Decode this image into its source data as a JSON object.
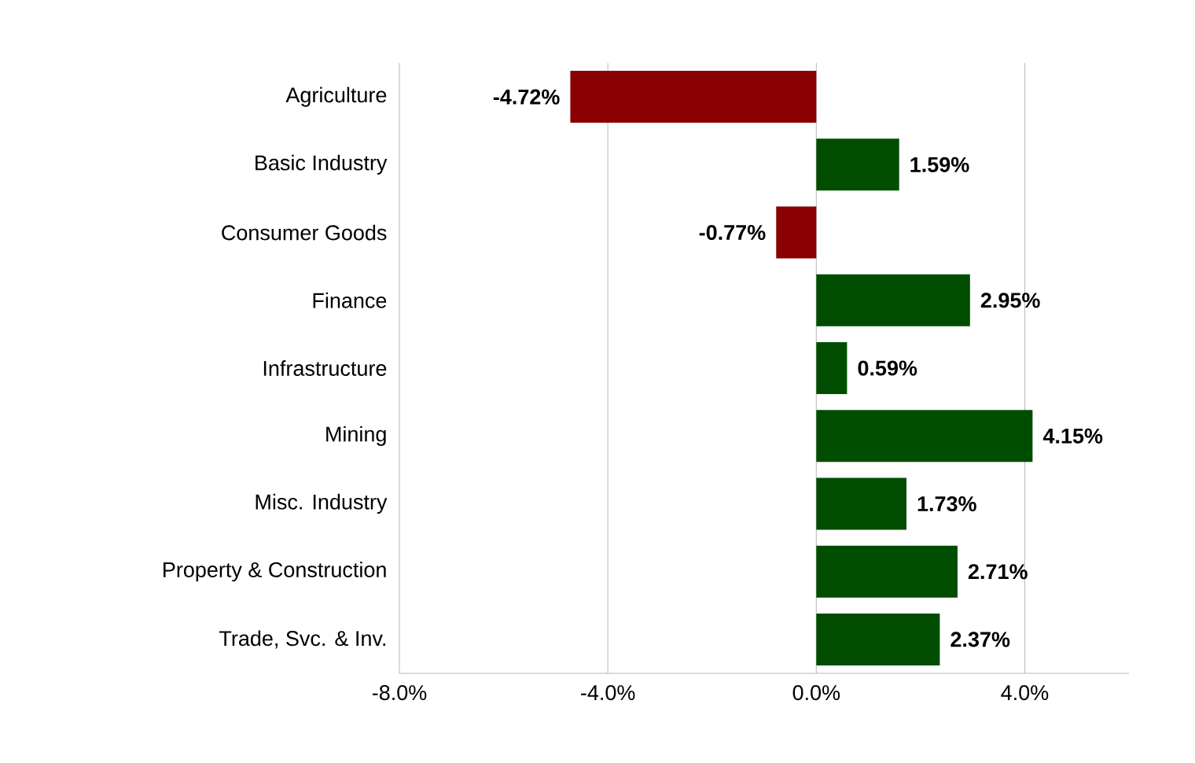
{
  "chart_data": {
    "type": "bar",
    "orientation": "horizontal",
    "categories": [
      "Agriculture",
      "Basic Industry",
      "Consumer Goods",
      "Finance",
      "Infrastructure",
      "Mining",
      "Misc. Industry",
      "Property & Construction",
      "Trade, Svc. & Inv."
    ],
    "values": [
      -4.72,
      1.59,
      -0.77,
      2.95,
      0.59,
      4.15,
      1.73,
      2.71,
      2.37
    ],
    "colors": [
      "#8b0000",
      "#004d00",
      "#8b0000",
      "#004d00",
      "#004d00",
      "#004d00",
      "#004d00",
      "#004d00",
      "#004d00"
    ],
    "value_labels": [
      "-4.72%",
      "1.59%",
      "-0.77%",
      "2.95%",
      "0.59%",
      "4.15%",
      "1.73%",
      "2.71%",
      "2.37%"
    ],
    "xlim": [
      -8,
      6
    ],
    "xticks": [
      {
        "value": -8,
        "label": "-8.0%"
      },
      {
        "value": -4,
        "label": "-4.0%"
      },
      {
        "value": 0,
        "label": "0.0%"
      },
      {
        "value": 4,
        "label": "4.0%"
      }
    ],
    "grid": "x"
  }
}
